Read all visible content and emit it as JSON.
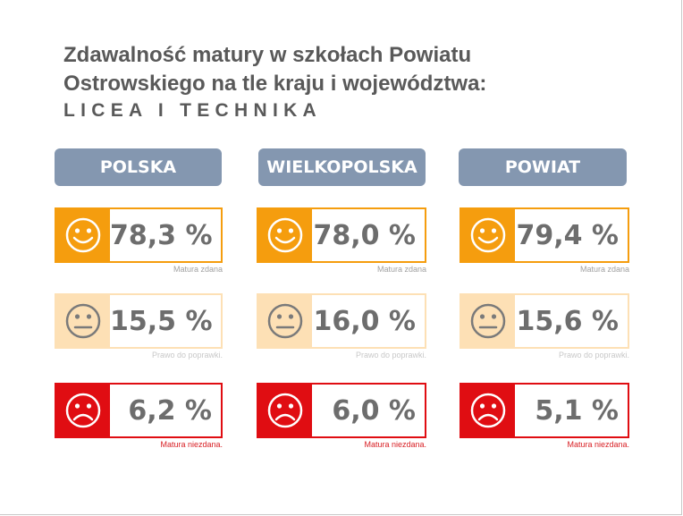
{
  "title": {
    "line1": "Zdawalność matury w szkołach Powiatu",
    "line2": "Ostrowskiego na tle kraju i województwa:",
    "subtitle": "LICEA I TECHNIKA"
  },
  "columns": [
    {
      "header": "POLSKA",
      "pass": "78,3 %",
      "pass_caption": "Matura zdana",
      "retake": "15,5 %",
      "retake_caption": "Prawo do poprawki.",
      "fail": "6,2 %",
      "fail_caption": "Matura niezdana."
    },
    {
      "header": "WIELKOPOLSKA",
      "pass": "78,0 %",
      "pass_caption": "Matura zdana",
      "retake": "16,0 %",
      "retake_caption": "Prawo do poprawki.",
      "fail": "6,0 %",
      "fail_caption": "Matura niezdana."
    },
    {
      "header": "POWIAT",
      "pass": "79,4 %",
      "pass_caption": "Matura zdana",
      "retake": "15,6 %",
      "retake_caption": "Prawo do poprawki.",
      "fail": "5,1 %",
      "fail_caption": "Matura niezdana."
    }
  ],
  "icons": {
    "pass": "smiley-face-icon",
    "retake": "neutral-face-icon",
    "fail": "sad-face-icon"
  },
  "colors": {
    "header_bg": "#8497b0",
    "pass": "#f59d0e",
    "retake": "#fde0b5",
    "fail": "#e00d12",
    "value_text": "#6d6d6d"
  }
}
